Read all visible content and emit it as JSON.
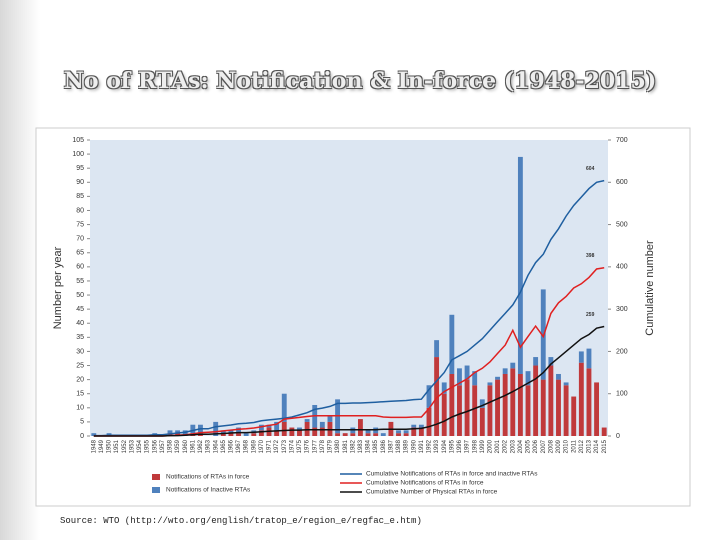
{
  "title": "No of RTAs: Notification  & In-force (1948-2015)",
  "source": "Source: WTO (http://wto.org/english/tratop_e/region_e/regfac_e.htm)",
  "chart_data": {
    "type": "bar",
    "stacked": true,
    "ylabel": "Number per year",
    "y2label": "Cumulative number",
    "categories": [
      "1948",
      "1949",
      "1950",
      "1951",
      "1952",
      "1953",
      "1954",
      "1955",
      "1956",
      "1957",
      "1958",
      "1959",
      "1960",
      "1961",
      "1962",
      "1963",
      "1964",
      "1965",
      "1966",
      "1967",
      "1968",
      "1969",
      "1970",
      "1971",
      "1972",
      "1973",
      "1974",
      "1975",
      "1976",
      "1977",
      "1978",
      "1979",
      "1980",
      "1981",
      "1982",
      "1983",
      "1984",
      "1985",
      "1986",
      "1987",
      "1988",
      "1989",
      "1990",
      "1991",
      "1992",
      "1993",
      "1994",
      "1995",
      "1996",
      "1997",
      "1998",
      "1999",
      "2000",
      "2001",
      "2002",
      "2003",
      "2004",
      "2005",
      "2006",
      "2007",
      "2008",
      "2009",
      "2010",
      "2011",
      "2012",
      "2013",
      "2014",
      "2015"
    ],
    "ylim": [
      0,
      105
    ],
    "yticks": [
      0,
      5,
      10,
      15,
      20,
      25,
      30,
      35,
      40,
      45,
      50,
      55,
      60,
      65,
      70,
      75,
      80,
      85,
      90,
      95,
      100,
      105
    ],
    "y2lim": [
      0,
      700
    ],
    "y2ticks": [
      0,
      100,
      200,
      300,
      400,
      500,
      600,
      700
    ],
    "grid": false,
    "series": [
      {
        "name": "Notifications of RTAs in force",
        "type": "bar",
        "color": "#c0393b",
        "values": [
          0,
          0,
          0,
          0,
          0,
          0,
          0,
          0,
          0,
          0,
          1,
          1,
          0,
          1,
          1,
          0,
          0,
          1,
          1,
          1,
          0,
          1,
          2,
          3,
          2,
          5,
          3,
          2,
          5,
          3,
          3,
          5,
          1,
          1,
          1,
          6,
          1,
          1,
          0,
          5,
          1,
          1,
          3,
          3,
          10,
          28,
          15,
          22,
          18,
          20,
          18,
          10,
          18,
          20,
          22,
          24,
          22,
          18,
          25,
          20,
          25,
          20,
          18,
          14,
          26,
          24,
          19,
          3
        ]
      },
      {
        "name": "Notifications of Inactive RTAs",
        "type": "bar",
        "color": "#4f81bd",
        "values": [
          1,
          0,
          1,
          0,
          0,
          0,
          0,
          0,
          1,
          0,
          1,
          1,
          2,
          3,
          3,
          0,
          5,
          1,
          1,
          2,
          1,
          1,
          2,
          1,
          3,
          10,
          0,
          1,
          1,
          8,
          2,
          2,
          12,
          0,
          2,
          0,
          1,
          2,
          1,
          0,
          1,
          1,
          1,
          1,
          8,
          6,
          4,
          21,
          6,
          5,
          5,
          3,
          1,
          1,
          2,
          2,
          77,
          5,
          3,
          32,
          3,
          2,
          1,
          0,
          4,
          7,
          0,
          0
        ]
      },
      {
        "name": "Cumulative Notifications of RTAs in force and inactive RTAs",
        "type": "line",
        "axis": "y2",
        "color": "#1f5fa0",
        "values": [
          1,
          1,
          2,
          2,
          2,
          2,
          2,
          2,
          3,
          3,
          5,
          7,
          9,
          13,
          17,
          17,
          22,
          24,
          26,
          29,
          30,
          32,
          36,
          38,
          40,
          42,
          45,
          50,
          55,
          63,
          66,
          70,
          77,
          77,
          78,
          78,
          79,
          80,
          81,
          82,
          83,
          84,
          86,
          87,
          110,
          130,
          150,
          180,
          190,
          200,
          215,
          230,
          250,
          270,
          290,
          310,
          340,
          380,
          410,
          430,
          465,
          490,
          520,
          545,
          565,
          585,
          600,
          604
        ]
      },
      {
        "name": "Cumulative Notifications of RTAs in force",
        "type": "line",
        "axis": "y2",
        "color": "#e02020",
        "values": [
          0,
          0,
          0,
          0,
          0,
          0,
          0,
          0,
          0,
          0,
          1,
          2,
          3,
          5,
          8,
          9,
          10,
          12,
          14,
          16,
          17,
          19,
          22,
          25,
          28,
          40,
          42,
          44,
          46,
          48,
          48,
          48,
          48,
          48,
          48,
          48,
          48,
          48,
          45,
          44,
          44,
          44,
          45,
          45,
          65,
          90,
          105,
          115,
          125,
          135,
          150,
          160,
          175,
          195,
          215,
          250,
          210,
          235,
          260,
          235,
          290,
          315,
          330,
          350,
          360,
          375,
          395,
          398
        ]
      },
      {
        "name": "Cumulative Number of Physical RTAs in force",
        "type": "line",
        "axis": "y2",
        "color": "#111111",
        "values": [
          0,
          0,
          0,
          0,
          0,
          0,
          0,
          0,
          0,
          0,
          1,
          1,
          2,
          3,
          4,
          4,
          5,
          6,
          7,
          8,
          8,
          9,
          10,
          11,
          12,
          13,
          14,
          14,
          15,
          15,
          15,
          15,
          15,
          15,
          15,
          15,
          15,
          15,
          16,
          16,
          16,
          16,
          17,
          18,
          22,
          28,
          35,
          45,
          52,
          58,
          65,
          72,
          80,
          88,
          96,
          105,
          115,
          125,
          135,
          150,
          170,
          185,
          200,
          215,
          230,
          240,
          255,
          259
        ]
      }
    ],
    "annotations": [
      "604",
      "398",
      "259"
    ]
  }
}
